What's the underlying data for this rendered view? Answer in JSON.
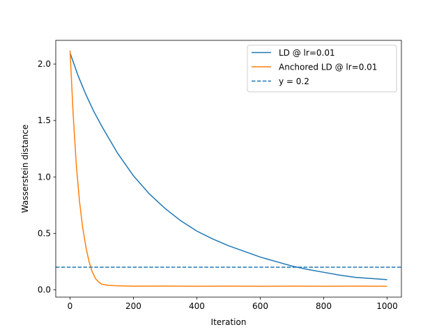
{
  "chart_data": {
    "type": "line",
    "title": "",
    "xlabel": "Iteration",
    "ylabel": "Wasserstein distance",
    "xlim": [
      -45,
      1045
    ],
    "ylim": [
      -0.065,
      2.21
    ],
    "xticks": [
      0,
      200,
      400,
      600,
      800,
      1000
    ],
    "yticks": [
      0.0,
      0.5,
      1.0,
      1.5,
      2.0
    ],
    "xtick_labels": [
      "0",
      "200",
      "400",
      "600",
      "800",
      "1000"
    ],
    "ytick_labels": [
      "0.0",
      "0.5",
      "1.0",
      "1.5",
      "2.0"
    ],
    "grid": false,
    "legend_position": "top-right",
    "series": [
      {
        "name": "LD @ lr=0.01",
        "color": "#1f77b4",
        "style": "solid",
        "x": [
          0,
          25,
          50,
          75,
          100,
          150,
          200,
          250,
          300,
          350,
          400,
          450,
          500,
          550,
          600,
          650,
          700,
          750,
          800,
          850,
          900,
          950,
          1000
        ],
        "y": [
          2.1,
          1.9,
          1.73,
          1.58,
          1.45,
          1.21,
          1.01,
          0.85,
          0.72,
          0.61,
          0.52,
          0.45,
          0.39,
          0.34,
          0.29,
          0.25,
          0.21,
          0.18,
          0.155,
          0.13,
          0.11,
          0.1,
          0.09
        ]
      },
      {
        "name": "Anchored LD @ lr=0.01",
        "color": "#ff7f0e",
        "style": "solid",
        "x": [
          0,
          10,
          20,
          30,
          40,
          50,
          60,
          70,
          80,
          90,
          100,
          120,
          150,
          200,
          300,
          400,
          500,
          600,
          700,
          800,
          900,
          1000
        ],
        "y": [
          2.12,
          1.55,
          1.1,
          0.78,
          0.55,
          0.38,
          0.25,
          0.16,
          0.1,
          0.07,
          0.05,
          0.04,
          0.035,
          0.032,
          0.033,
          0.031,
          0.032,
          0.031,
          0.032,
          0.031,
          0.032,
          0.031
        ]
      },
      {
        "name": "y = 0.2",
        "color": "#1f77b4",
        "style": "dashed",
        "x": [
          -45,
          1045
        ],
        "y": [
          0.2,
          0.2
        ]
      }
    ]
  }
}
